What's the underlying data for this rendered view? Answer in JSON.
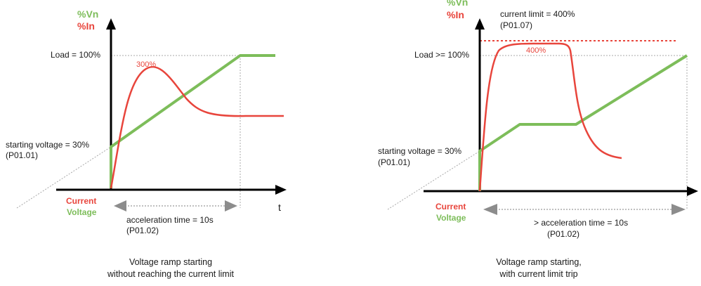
{
  "colors": {
    "current": "#e8453c",
    "voltage": "#7dbd5a",
    "axis": "#000000",
    "guide": "#a8a8a8",
    "arrow": "#8c8c8c"
  },
  "left_diagram": {
    "axis_label_voltage": "%Vn",
    "axis_label_current": "%In",
    "load_label": "Load = 100%",
    "peak_label": "300%",
    "start_voltage_label": "starting voltage = 30%",
    "start_voltage_param": "(P01.01)",
    "legend_current": "Current",
    "legend_voltage": "Voltage",
    "time_axis_label": "t",
    "accel_label": "acceleration time = 10s",
    "accel_param": "(P01.02)",
    "caption_line1": "Voltage ramp starting",
    "caption_line2": "without reaching the current limit"
  },
  "right_diagram": {
    "axis_label_voltage": "%Vn",
    "axis_label_current": "%In",
    "limit_label": "current limit = 400%",
    "limit_param": "(P01.07)",
    "peak_label": "400%",
    "load_label": "Load >= 100%",
    "start_voltage_label": "starting voltage = 30%",
    "start_voltage_param": "(P01.01)",
    "legend_current": "Current",
    "legend_voltage": "Voltage",
    "accel_label": ">  acceleration time = 10s",
    "accel_param": "(P01.02)",
    "caption_line1": "Voltage ramp starting,",
    "caption_line2": "with current limit trip"
  }
}
